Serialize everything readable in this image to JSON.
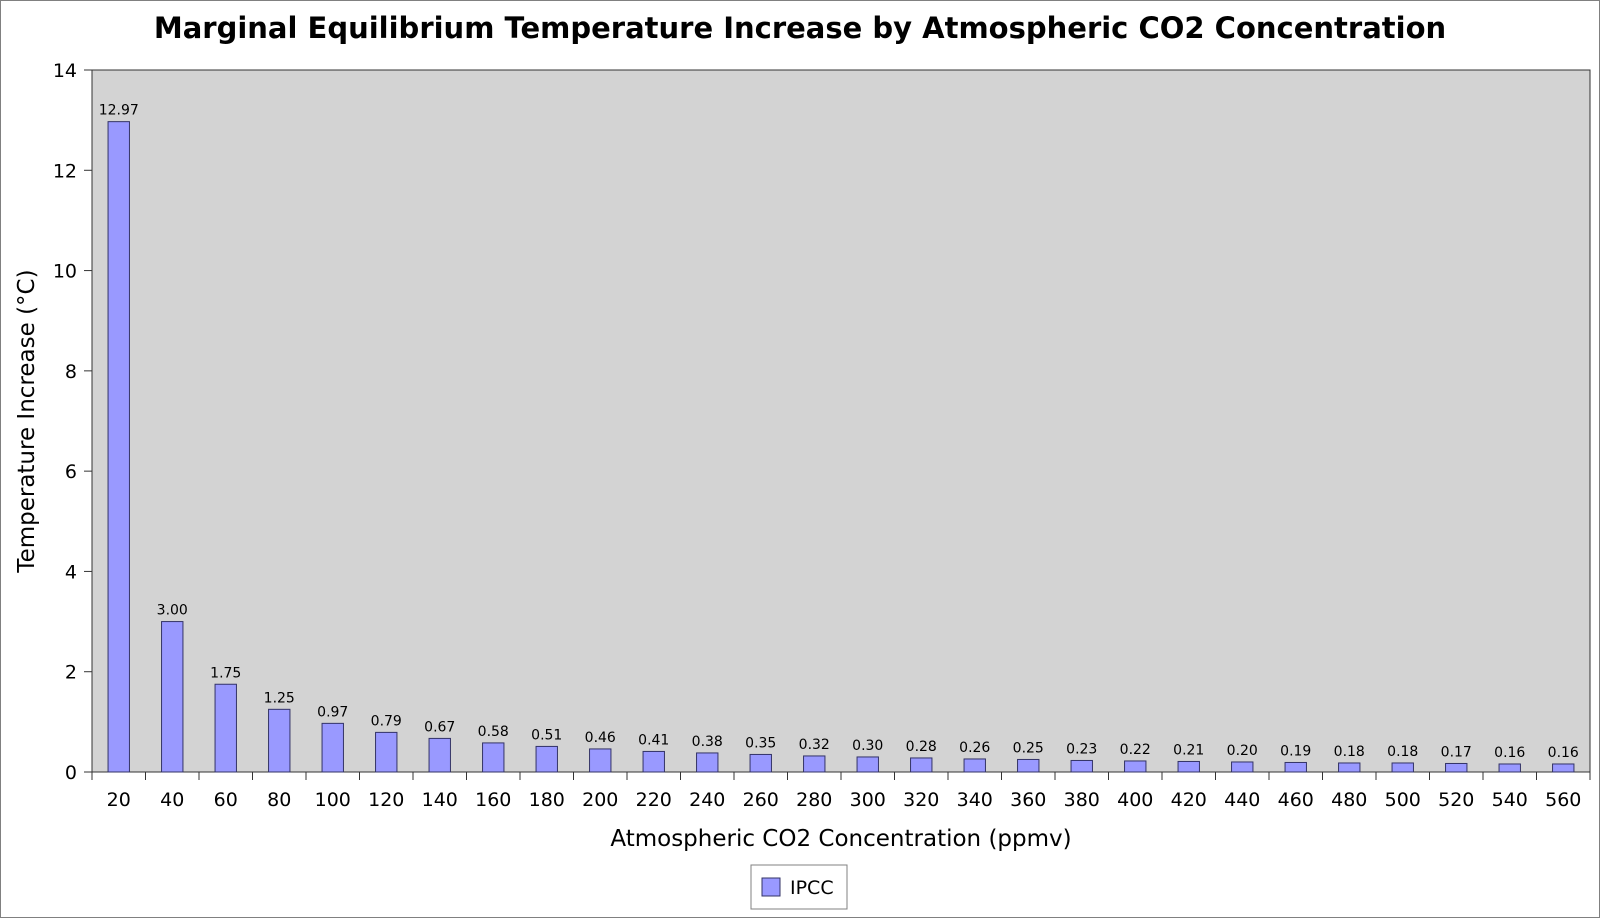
{
  "colors": {
    "plot_background": "#d3d3d3",
    "bar_fill": "#9999ff",
    "bar_stroke": "#333366",
    "axis": "#333333"
  },
  "chart_data": {
    "type": "bar",
    "title": "Marginal Equilibrium Temperature Increase by Atmospheric CO2 Concentration",
    "xlabel": "Atmospheric CO2 Concentration (ppmv)",
    "ylabel": "Temperature Increase (°C)",
    "ylim": [
      0,
      14
    ],
    "yticks": [
      "0",
      "2",
      "4",
      "6",
      "8",
      "10",
      "12",
      "14"
    ],
    "grid": false,
    "legend_position": "bottom-center",
    "categories": [
      "20",
      "40",
      "60",
      "80",
      "100",
      "120",
      "140",
      "160",
      "180",
      "200",
      "220",
      "240",
      "260",
      "280",
      "300",
      "320",
      "340",
      "360",
      "380",
      "400",
      "420",
      "440",
      "460",
      "480",
      "500",
      "520",
      "540",
      "560"
    ],
    "series": [
      {
        "name": "IPCC",
        "values": [
          12.97,
          3.0,
          1.75,
          1.25,
          0.97,
          0.79,
          0.67,
          0.58,
          0.51,
          0.46,
          0.41,
          0.38,
          0.35,
          0.32,
          0.3,
          0.28,
          0.26,
          0.25,
          0.23,
          0.22,
          0.21,
          0.2,
          0.19,
          0.18,
          0.18,
          0.17,
          0.16,
          0.16
        ],
        "labels": [
          "12.97",
          "3.00",
          "1.75",
          "1.25",
          "0.97",
          "0.79",
          "0.67",
          "0.58",
          "0.51",
          "0.46",
          "0.41",
          "0.38",
          "0.35",
          "0.32",
          "0.30",
          "0.28",
          "0.26",
          "0.25",
          "0.23",
          "0.22",
          "0.21",
          "0.20",
          "0.19",
          "0.18",
          "0.18",
          "0.17",
          "0.16",
          "0.16"
        ]
      }
    ]
  }
}
